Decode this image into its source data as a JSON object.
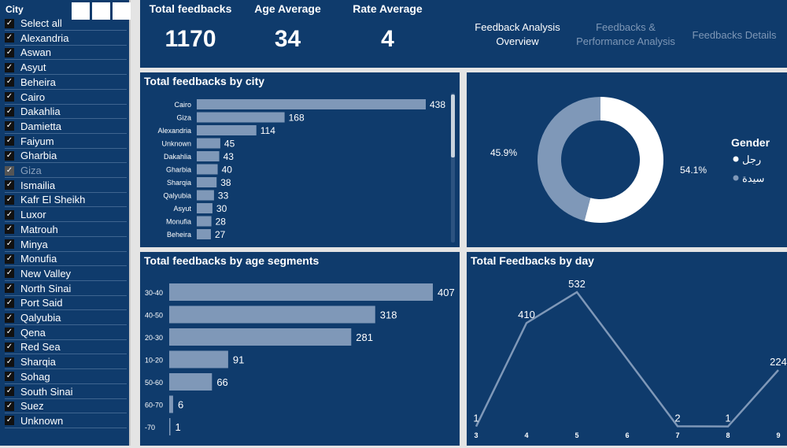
{
  "slicer": {
    "title": "City",
    "items": [
      {
        "label": "Select all",
        "checked": true
      },
      {
        "label": "Alexandria",
        "checked": true
      },
      {
        "label": "Aswan",
        "checked": true
      },
      {
        "label": "Asyut",
        "checked": true
      },
      {
        "label": "Beheira",
        "checked": true
      },
      {
        "label": "Cairo",
        "checked": true
      },
      {
        "label": "Dakahlia",
        "checked": true
      },
      {
        "label": "Damietta",
        "checked": true
      },
      {
        "label": "Faiyum",
        "checked": true
      },
      {
        "label": "Gharbia",
        "checked": true
      },
      {
        "label": "Giza",
        "checked": true,
        "dim": true
      },
      {
        "label": "Ismailia",
        "checked": true
      },
      {
        "label": "Kafr El Sheikh",
        "checked": true
      },
      {
        "label": "Luxor",
        "checked": true
      },
      {
        "label": "Matrouh",
        "checked": true
      },
      {
        "label": "Minya",
        "checked": true
      },
      {
        "label": "Monufia",
        "checked": true
      },
      {
        "label": "New Valley",
        "checked": true
      },
      {
        "label": "North Sinai",
        "checked": true
      },
      {
        "label": "Port Said",
        "checked": true
      },
      {
        "label": "Qalyubia",
        "checked": true
      },
      {
        "label": "Qena",
        "checked": true
      },
      {
        "label": "Red Sea",
        "checked": true
      },
      {
        "label": "Sharqia",
        "checked": true
      },
      {
        "label": "Sohag",
        "checked": true
      },
      {
        "label": "South Sinai",
        "checked": true
      },
      {
        "label": "Suez",
        "checked": true
      },
      {
        "label": "Unknown",
        "checked": true
      }
    ]
  },
  "kpis": {
    "total_label": "Total feedbacks",
    "total_value": "1170",
    "age_label": "Age Average",
    "age_value": "34",
    "rate_label": "Rate Average",
    "rate_value": "4"
  },
  "nav": {
    "overview": "Feedback Analysis Overview",
    "performance": "Feedbacks & Performance Analysis",
    "details": "Feedbacks Details"
  },
  "colors": {
    "bar": "#7f98b8",
    "bg": "#0f3b6c",
    "white": "#ffffff"
  },
  "chart_data": [
    {
      "type": "bar",
      "title": "Total feedbacks by city",
      "categories": [
        "Cairo",
        "Giza",
        "Alexandria",
        "Unknown",
        "Dakahlia",
        "Gharbia",
        "Sharqia",
        "Qalyubia",
        "Asyut",
        "Monufia",
        "Beheira"
      ],
      "values": [
        438,
        168,
        114,
        45,
        43,
        40,
        38,
        33,
        30,
        28,
        27
      ]
    },
    {
      "type": "pie",
      "title": "Gender",
      "legend_title": "Gender",
      "categories": [
        "رجل",
        "سيدة"
      ],
      "values": [
        54.1,
        45.9
      ],
      "labels": [
        "54.1%",
        "45.9%"
      ]
    },
    {
      "type": "bar",
      "title": "Total feedbacks by age segments",
      "categories": [
        "30-40",
        "40-50",
        "20-30",
        "10-20",
        "50-60",
        "60-70",
        "-70"
      ],
      "values": [
        407,
        318,
        281,
        91,
        66,
        6,
        1
      ]
    },
    {
      "type": "line",
      "title": "Total Feedbacks by day",
      "x_ticks": [
        "3",
        "4",
        "5",
        "6",
        "7",
        "8",
        "9"
      ],
      "x": [
        3,
        4,
        5,
        7,
        8,
        9
      ],
      "values": [
        1,
        410,
        532,
        2,
        1,
        224
      ]
    }
  ]
}
